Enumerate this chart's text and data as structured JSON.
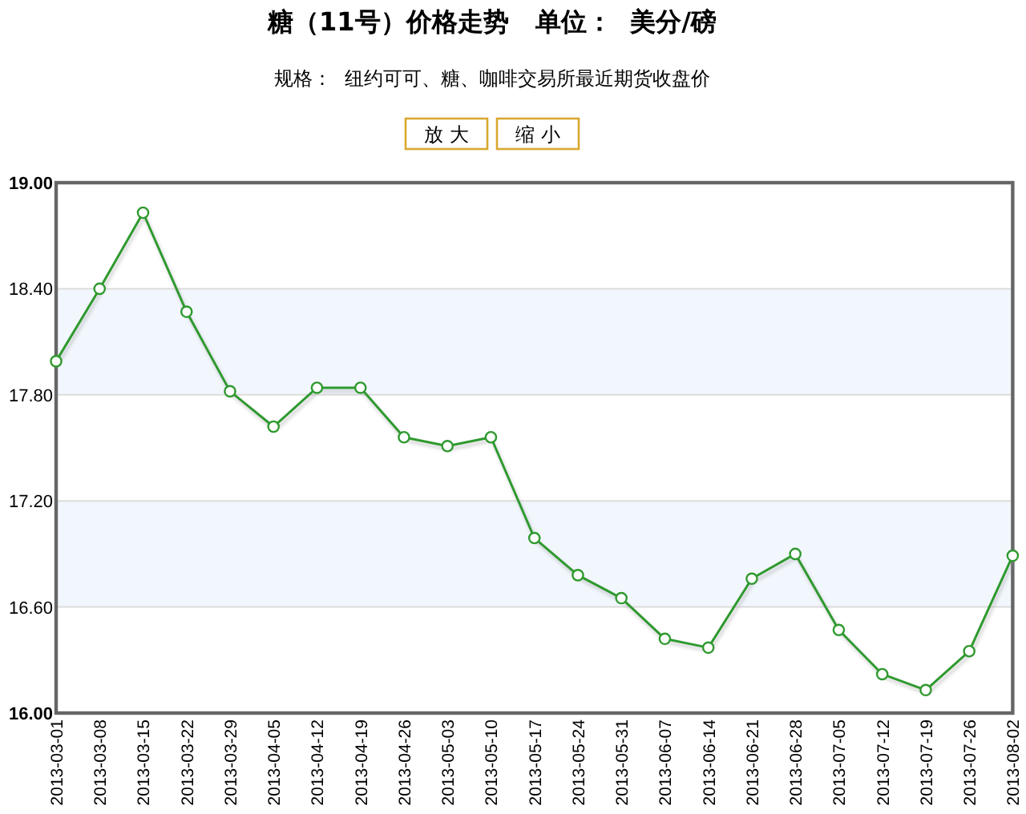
{
  "chart_data": {
    "type": "line",
    "title": "糖（11号）价格走势   单位：  美分/磅",
    "subtitle": "规格：  纽约可可、糖、咖啡交易所最近期货收盘价",
    "annotations": [
      "放 大",
      "缩 小"
    ],
    "categories": [
      "2013-03-01",
      "2013-03-08",
      "2013-03-15",
      "2013-03-22",
      "2013-03-29",
      "2013-04-05",
      "2013-04-12",
      "2013-04-19",
      "2013-04-26",
      "2013-05-03",
      "2013-05-10",
      "2013-05-17",
      "2013-05-24",
      "2013-05-31",
      "2013-06-07",
      "2013-06-14",
      "2013-06-21",
      "2013-06-28",
      "2013-07-05",
      "2013-07-12",
      "2013-07-19",
      "2013-07-26",
      "2013-08-02"
    ],
    "series": [
      {
        "color": "#2f9a2f",
        "values": [
          17.99,
          18.4,
          18.83,
          18.27,
          17.82,
          17.62,
          17.84,
          17.84,
          17.56,
          17.51,
          17.56,
          16.99,
          16.78,
          16.65,
          16.42,
          16.37,
          16.76,
          16.9,
          16.47,
          16.22,
          16.13,
          16.35,
          16.89
        ]
      }
    ],
    "ylim": [
      16,
      19
    ],
    "yticks": [
      {
        "value": 16,
        "label": "16.00"
      },
      {
        "value": 16.6,
        "label": "16.60"
      },
      {
        "value": 17.2,
        "label": "17.20"
      },
      {
        "value": 17.8,
        "label": "17.80"
      },
      {
        "value": 18.4,
        "label": "18.40"
      },
      {
        "value": 19,
        "label": "19.00"
      }
    ],
    "bands": [
      {
        "axis": "y",
        "from": 17.8,
        "to": 18.4,
        "color": "#f2f7fd"
      },
      {
        "axis": "y",
        "from": 16.6,
        "to": 17.2,
        "color": "#f2f7fd"
      }
    ],
    "grid": "y",
    "marker": "circle",
    "line_style": "solid"
  }
}
